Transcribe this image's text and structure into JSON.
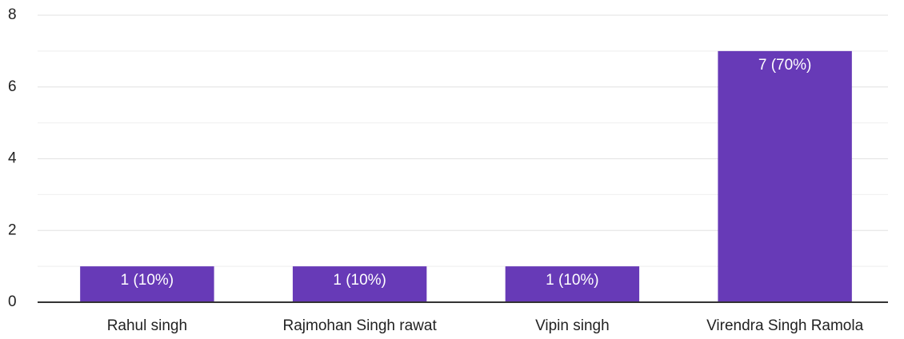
{
  "chart_data": {
    "type": "bar",
    "categories": [
      "Rahul singh",
      "Rajmohan Singh rawat",
      "Vipin singh",
      "Virendra Singh Ramola"
    ],
    "values": [
      1,
      1,
      1,
      7
    ],
    "value_labels": [
      "1 (10%)",
      "1 (10%)",
      "1 (10%)",
      "7 (70%)"
    ],
    "color": "#673ab7",
    "ylim": [
      0,
      8
    ],
    "yticks": [
      0,
      2,
      4,
      6,
      8
    ],
    "grid": true,
    "minor_grid": true
  }
}
